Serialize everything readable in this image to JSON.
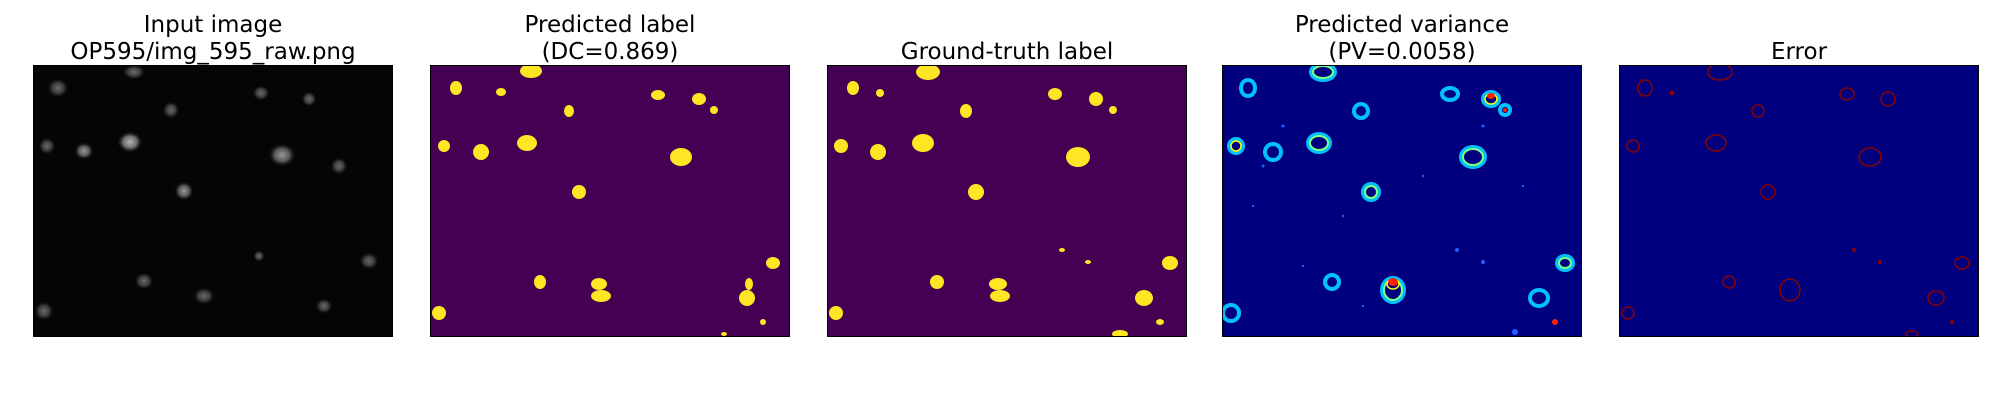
{
  "panels": [
    {
      "title_line1": "Input image",
      "title_line2": "OP595/img_595_raw.png",
      "image": "grayscale microscopy image of faint nuclei on black background",
      "colormap": "gray"
    },
    {
      "title_line1": "Predicted label",
      "title_line2": "(DC=0.869)",
      "image": "binary segmentation mask, yellow blobs on purple",
      "colormap": "viridis"
    },
    {
      "title_line1": "",
      "title_line2": "Ground-truth label",
      "image": "binary ground-truth mask, yellow blobs on purple",
      "colormap": "viridis"
    },
    {
      "title_line1": "Predicted variance",
      "title_line2": "(PV=0.0058)",
      "image": "variance heatmap, rainbow rings around nuclei on dark blue",
      "colormap": "jet"
    },
    {
      "title_line1": "",
      "title_line2": "Error",
      "image": "error map, thin red outlines on dark blue",
      "colormap": "jet"
    }
  ],
  "colors": {
    "background": "#ffffff",
    "gray_bg": "#050505",
    "viridis_bg": "#440154",
    "viridis_fg": "#fde725",
    "jet_bg": "#00007f",
    "jet_error": "#8b0000"
  }
}
